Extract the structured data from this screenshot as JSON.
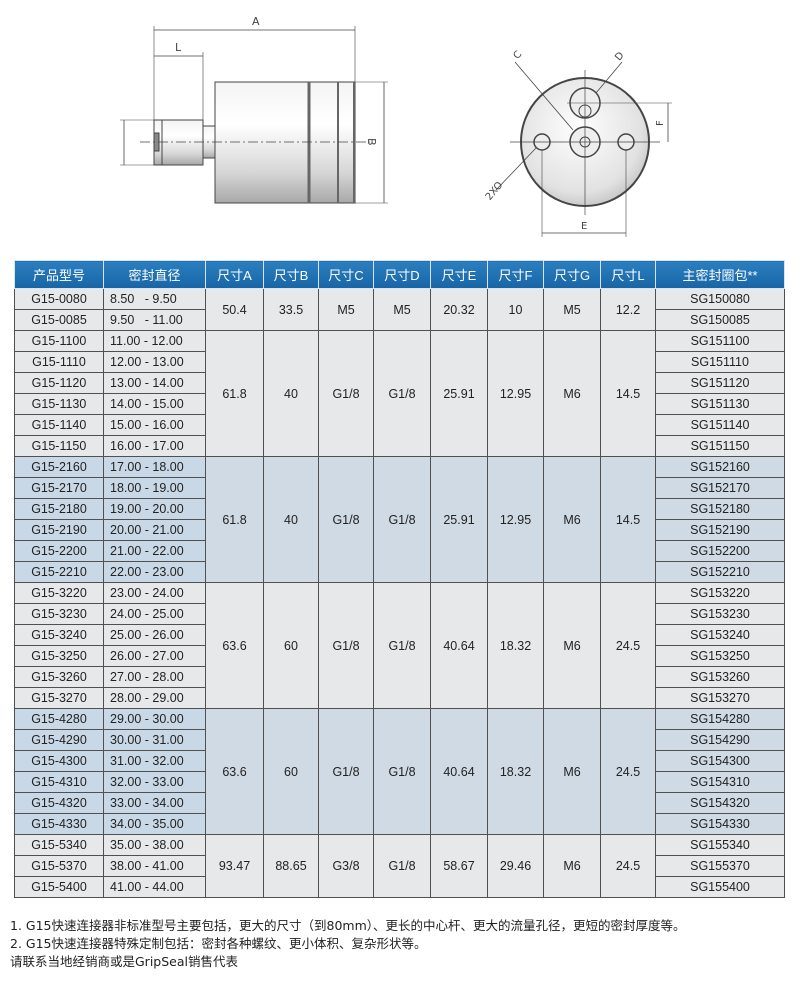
{
  "drawing": {
    "side_labels": {
      "a": "A",
      "l": "L",
      "b": "B"
    },
    "end_labels": {
      "c": "C",
      "d": "D",
      "e": "E",
      "f": "F",
      "holes": "2XO"
    }
  },
  "table": {
    "headers": [
      "产品型号",
      "密封直径",
      "尺寸A",
      "尺寸B",
      "尺寸C",
      "尺寸D",
      "尺寸E",
      "尺寸F",
      "尺寸G",
      "尺寸L",
      "主密封圈包**"
    ],
    "groups": [
      {
        "shade": "light",
        "A": "50.4",
        "B": "33.5",
        "C": "M5",
        "D": "M5",
        "E": "20.32",
        "F": "10",
        "G": "M5",
        "L": "12.2",
        "rows": [
          [
            "G15-0080",
            "8.50   - 9.50",
            "SG150080"
          ],
          [
            "G15-0085",
            "9.50   - 11.00",
            "SG150085"
          ]
        ]
      },
      {
        "shade": "light",
        "A": "61.8",
        "B": "40",
        "C": "G1/8",
        "D": "G1/8",
        "E": "25.91",
        "F": "12.95",
        "G": "M6",
        "L": "14.5",
        "rows": [
          [
            "G15-1100",
            "11.00 - 12.00",
            "SG151100"
          ],
          [
            "G15-1110",
            "12.00 - 13.00",
            "SG151110"
          ],
          [
            "G15-1120",
            "13.00 - 14.00",
            "SG151120"
          ],
          [
            "G15-1130",
            "14.00 - 15.00",
            "SG151130"
          ],
          [
            "G15-1140",
            "15.00 - 16.00",
            "SG151140"
          ],
          [
            "G15-1150",
            "16.00 - 17.00",
            "SG151150"
          ]
        ]
      },
      {
        "shade": "blue",
        "A": "61.8",
        "B": "40",
        "C": "G1/8",
        "D": "G1/8",
        "E": "25.91",
        "F": "12.95",
        "G": "M6",
        "L": "14.5",
        "rows": [
          [
            "G15-2160",
            "17.00 - 18.00",
            "SG152160"
          ],
          [
            "G15-2170",
            "18.00 - 19.00",
            "SG152170"
          ],
          [
            "G15-2180",
            "19.00 - 20.00",
            "SG152180"
          ],
          [
            "G15-2190",
            "20.00 - 21.00",
            "SG152190"
          ],
          [
            "G15-2200",
            "21.00 - 22.00",
            "SG152200"
          ],
          [
            "G15-2210",
            "22.00 - 23.00",
            "SG152210"
          ]
        ]
      },
      {
        "shade": "light",
        "A": "63.6",
        "B": "60",
        "C": "G1/8",
        "D": "G1/8",
        "E": "40.64",
        "F": "18.32",
        "G": "M6",
        "L": "24.5",
        "rows": [
          [
            "G15-3220",
            "23.00 - 24.00",
            "SG153220"
          ],
          [
            "G15-3230",
            "24.00 - 25.00",
            "SG153230"
          ],
          [
            "G15-3240",
            "25.00 - 26.00",
            "SG153240"
          ],
          [
            "G15-3250",
            "26.00 - 27.00",
            "SG153250"
          ],
          [
            "G15-3260",
            "27.00 - 28.00",
            "SG153260"
          ],
          [
            "G15-3270",
            "28.00 - 29.00",
            "SG153270"
          ]
        ]
      },
      {
        "shade": "blue",
        "A": "63.6",
        "B": "60",
        "C": "G1/8",
        "D": "G1/8",
        "E": "40.64",
        "F": "18.32",
        "G": "M6",
        "L": "24.5",
        "rows": [
          [
            "G15-4280",
            "29.00 - 30.00",
            "SG154280"
          ],
          [
            "G15-4290",
            "30.00 - 31.00",
            "SG154290"
          ],
          [
            "G15-4300",
            "31.00 - 32.00",
            "SG154300"
          ],
          [
            "G15-4310",
            "32.00 - 33.00",
            "SG154310"
          ],
          [
            "G15-4320",
            "33.00 - 34.00",
            "SG154320"
          ],
          [
            "G15-4330",
            "34.00 - 35.00",
            "SG154330"
          ]
        ]
      },
      {
        "shade": "light",
        "A": "93.47",
        "B": "88.65",
        "C": "G3/8",
        "D": "G1/8",
        "E": "58.67",
        "F": "29.46",
        "G": "M6",
        "L": "24.5",
        "rows": [
          [
            "G15-5340",
            "35.00 - 38.00",
            "SG155340"
          ],
          [
            "G15-5370",
            "38.00 - 41.00",
            "SG155370"
          ],
          [
            "G15-5400",
            "41.00 - 44.00",
            "SG155400"
          ]
        ]
      }
    ]
  },
  "notes": [
    "1. G15快速连接器非标准型号主要包括，更大的尺寸（到80mm）、更长的中心杆、更大的流量孔径，更短的密封厚度等。",
    "2. G15快速连接器特殊定制包括：密封各种螺纹、更小体积、复杂形状等。",
    "请联系当地经销商或是GripSeal销售代表"
  ],
  "colors": {
    "header": "#1e70b0",
    "row_light": "#e6e8ea",
    "row_blue": "#cfdae4",
    "border": "#505050"
  }
}
